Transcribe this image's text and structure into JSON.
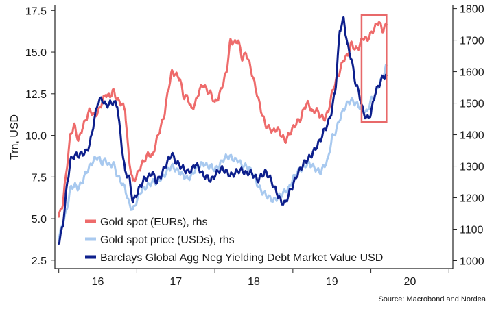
{
  "chart_data": {
    "type": "line",
    "xlabel": "",
    "ylabel_left": "Trn, USD",
    "ylabel_right": "",
    "x_ticks": [
      "16",
      "17",
      "18",
      "19",
      "20"
    ],
    "x_range": [
      2015.45,
      2020.55
    ],
    "y_left_range": [
      2.0,
      17.8
    ],
    "y_left_ticks": [
      "2.5",
      "5.0",
      "7.5",
      "10.0",
      "12.5",
      "15.0",
      "17.5"
    ],
    "y_right_range": [
      975,
      1810
    ],
    "y_right_ticks": [
      "1000",
      "1100",
      "1200",
      "1300",
      "1400",
      "1500",
      "1600",
      "1700",
      "1800"
    ],
    "legend_position": "bottom-left",
    "source": "Source: Macrobond and Nordea",
    "highlight_box": {
      "x_range": [
        2019.38,
        2019.7
      ],
      "y_right_range": [
        1440,
        1780
      ],
      "color": "#e8696a"
    },
    "series": [
      {
        "name": "Gold spot (EURs), rhs",
        "axis": "right",
        "color": "#ee6b6b",
        "x": [
          2015.5,
          2015.55,
          2015.6,
          2015.65,
          2015.7,
          2015.75,
          2015.8,
          2015.85,
          2015.9,
          2015.95,
          2016.0,
          2016.05,
          2016.1,
          2016.15,
          2016.2,
          2016.25,
          2016.3,
          2016.35,
          2016.4,
          2016.45,
          2016.5,
          2016.55,
          2016.6,
          2016.65,
          2016.7,
          2016.75,
          2016.8,
          2016.85,
          2016.9,
          2016.95,
          2017.0,
          2017.05,
          2017.1,
          2017.15,
          2017.2,
          2017.25,
          2017.3,
          2017.35,
          2017.4,
          2017.45,
          2017.5,
          2017.55,
          2017.6,
          2017.65,
          2017.7,
          2017.75,
          2017.8,
          2017.85,
          2017.9,
          2017.95,
          2018.0,
          2018.05,
          2018.1,
          2018.15,
          2018.2,
          2018.25,
          2018.3,
          2018.35,
          2018.4,
          2018.45,
          2018.5,
          2018.55,
          2018.6,
          2018.65,
          2018.7,
          2018.75,
          2018.8,
          2018.85,
          2018.9,
          2018.95,
          2019.0,
          2019.05,
          2019.1,
          2019.15,
          2019.2,
          2019.25,
          2019.3,
          2019.35,
          2019.4,
          2019.45,
          2019.5,
          2019.55,
          2019.6,
          2019.65,
          2019.7
        ],
        "values": [
          1140,
          1180,
          1290,
          1400,
          1430,
          1380,
          1420,
          1450,
          1480,
          1460,
          1470,
          1500,
          1530,
          1520,
          1540,
          1510,
          1500,
          1480,
          1320,
          1250,
          1270,
          1300,
          1320,
          1340,
          1330,
          1380,
          1420,
          1460,
          1540,
          1600,
          1590,
          1580,
          1520,
          1520,
          1480,
          1500,
          1540,
          1560,
          1540,
          1530,
          1500,
          1520,
          1560,
          1600,
          1700,
          1690,
          1700,
          1640,
          1660,
          1620,
          1570,
          1520,
          1470,
          1430,
          1420,
          1410,
          1420,
          1400,
          1380,
          1400,
          1420,
          1440,
          1450,
          1490,
          1500,
          1470,
          1480,
          1460,
          1450,
          1470,
          1530,
          1570,
          1600,
          1640,
          1650,
          1690,
          1670,
          1680,
          1710,
          1700,
          1720,
          1740,
          1760,
          1730,
          1750
        ]
      },
      {
        "name": "Gold spot price (USDs), rhs",
        "axis": "right",
        "color": "#a8c9ef",
        "x": [
          2015.5,
          2015.55,
          2015.6,
          2015.65,
          2015.7,
          2015.75,
          2015.8,
          2015.85,
          2015.9,
          2015.95,
          2016.0,
          2016.05,
          2016.1,
          2016.15,
          2016.2,
          2016.25,
          2016.3,
          2016.35,
          2016.4,
          2016.45,
          2016.5,
          2016.55,
          2016.6,
          2016.65,
          2016.7,
          2016.75,
          2016.8,
          2016.85,
          2016.9,
          2016.95,
          2017.0,
          2017.05,
          2017.1,
          2017.15,
          2017.2,
          2017.25,
          2017.3,
          2017.35,
          2017.4,
          2017.45,
          2017.5,
          2017.55,
          2017.6,
          2017.65,
          2017.7,
          2017.75,
          2017.8,
          2017.85,
          2017.9,
          2017.95,
          2018.0,
          2018.05,
          2018.1,
          2018.15,
          2018.2,
          2018.25,
          2018.3,
          2018.35,
          2018.4,
          2018.45,
          2018.5,
          2018.55,
          2018.6,
          2018.65,
          2018.7,
          2018.75,
          2018.8,
          2018.85,
          2018.9,
          2018.95,
          2019.0,
          2019.05,
          2019.1,
          2019.15,
          2019.2,
          2019.25,
          2019.3,
          2019.35,
          2019.4,
          2019.45,
          2019.5,
          2019.55,
          2019.6,
          2019.65,
          2019.7
        ],
        "values": [
          1070,
          1120,
          1160,
          1230,
          1240,
          1230,
          1250,
          1280,
          1300,
          1320,
          1330,
          1310,
          1320,
          1300,
          1310,
          1270,
          1250,
          1230,
          1180,
          1160,
          1190,
          1220,
          1230,
          1240,
          1250,
          1250,
          1260,
          1270,
          1290,
          1300,
          1290,
          1280,
          1270,
          1260,
          1270,
          1290,
          1300,
          1310,
          1300,
          1300,
          1290,
          1300,
          1320,
          1330,
          1330,
          1320,
          1320,
          1300,
          1300,
          1290,
          1270,
          1240,
          1220,
          1210,
          1200,
          1190,
          1200,
          1210,
          1220,
          1230,
          1260,
          1280,
          1290,
          1300,
          1310,
          1300,
          1290,
          1280,
          1300,
          1320,
          1390,
          1410,
          1450,
          1480,
          1500,
          1510,
          1500,
          1490,
          1480,
          1470,
          1510,
          1520,
          1560,
          1580,
          1620
        ]
      },
      {
        "name": "Barclays Global Agg Neg Yielding Debt Market Value USD",
        "axis": "left",
        "color": "#0d1f8c",
        "x": [
          2015.5,
          2015.55,
          2015.6,
          2015.65,
          2015.7,
          2015.75,
          2015.8,
          2015.85,
          2015.9,
          2015.95,
          2016.0,
          2016.05,
          2016.1,
          2016.15,
          2016.2,
          2016.25,
          2016.3,
          2016.35,
          2016.4,
          2016.45,
          2016.5,
          2016.55,
          2016.6,
          2016.65,
          2016.7,
          2016.75,
          2016.8,
          2016.85,
          2016.9,
          2016.95,
          2017.0,
          2017.05,
          2017.1,
          2017.15,
          2017.2,
          2017.25,
          2017.3,
          2017.35,
          2017.4,
          2017.45,
          2017.5,
          2017.55,
          2017.6,
          2017.65,
          2017.7,
          2017.75,
          2017.8,
          2017.85,
          2017.9,
          2017.95,
          2018.0,
          2018.05,
          2018.1,
          2018.15,
          2018.2,
          2018.25,
          2018.3,
          2018.35,
          2018.4,
          2018.45,
          2018.5,
          2018.55,
          2018.6,
          2018.65,
          2018.7,
          2018.75,
          2018.8,
          2018.85,
          2018.9,
          2018.95,
          2019.0,
          2019.05,
          2019.1,
          2019.15,
          2019.2,
          2019.25,
          2019.3,
          2019.35,
          2019.4,
          2019.45,
          2019.5,
          2019.55,
          2019.6,
          2019.65,
          2019.7
        ],
        "values": [
          3.6,
          4.5,
          6.8,
          8.5,
          8.8,
          8.8,
          8.9,
          9.0,
          9.5,
          10.8,
          12.0,
          12.2,
          11.8,
          11.9,
          12.0,
          11.8,
          9.6,
          7.8,
          7.5,
          6.0,
          6.5,
          7.0,
          7.4,
          7.5,
          7.8,
          7.2,
          7.5,
          8.0,
          8.5,
          8.9,
          8.4,
          8.2,
          8.0,
          7.8,
          7.9,
          8.3,
          8.0,
          7.6,
          7.5,
          7.3,
          7.6,
          7.9,
          8.0,
          7.8,
          7.6,
          7.7,
          7.9,
          7.9,
          7.7,
          7.8,
          7.6,
          7.3,
          7.6,
          7.8,
          7.5,
          7.0,
          6.5,
          6.0,
          5.9,
          6.5,
          7.0,
          7.6,
          8.0,
          8.4,
          8.6,
          8.9,
          9.3,
          9.7,
          10.3,
          10.7,
          11.5,
          13.0,
          16.3,
          17.0,
          15.4,
          14.6,
          13.2,
          12.5,
          11.4,
          11.0,
          11.3,
          12.5,
          13.0,
          13.5,
          13.6
        ]
      }
    ]
  }
}
